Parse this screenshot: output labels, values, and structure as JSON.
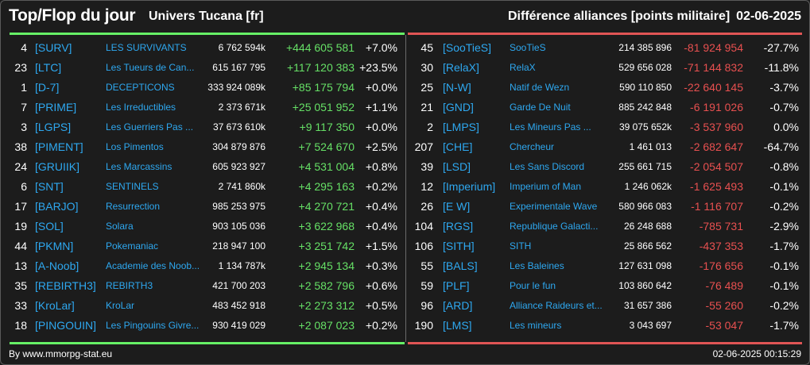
{
  "header": {
    "title": "Top/Flop du jour",
    "universe": "Univers Tucana [fr]",
    "metric": "Différence alliances [points militaire]",
    "date": "02-06-2025"
  },
  "colors": {
    "up": "#66e066",
    "down": "#e85050",
    "tag": "#2ea8f0",
    "top_bar": "#66f066",
    "flop_bar": "#e05555"
  },
  "top": [
    {
      "rank": "4",
      "tag": "[SURV]",
      "name": "LES SURVIVANTS",
      "points": "6 762 594k",
      "diff": "+444 605 581",
      "pct": "+7.0%"
    },
    {
      "rank": "23",
      "tag": "[LTC]",
      "name": "Les Tueurs de Can...",
      "points": "615 167 795",
      "diff": "+117 120 383",
      "pct": "+23.5%"
    },
    {
      "rank": "1",
      "tag": "[D-7]",
      "name": "DECEPTICONS",
      "points": "333 924 089k",
      "diff": "+85 175 794",
      "pct": "+0.0%"
    },
    {
      "rank": "7",
      "tag": "[PRIME]",
      "name": "Les Irreductibles",
      "points": "2 373 671k",
      "diff": "+25 051 952",
      "pct": "+1.1%"
    },
    {
      "rank": "3",
      "tag": "[LGPS]",
      "name": "Les Guerriers Pas ...",
      "points": "37 673 610k",
      "diff": "+9 117 350",
      "pct": "+0.0%"
    },
    {
      "rank": "38",
      "tag": "[PIMENT]",
      "name": "Los Pimentos",
      "points": "304 879 876",
      "diff": "+7 524 670",
      "pct": "+2.5%"
    },
    {
      "rank": "24",
      "tag": "[GRUIIK]",
      "name": "Les Marcassins",
      "points": "605 923 927",
      "diff": "+4 531 004",
      "pct": "+0.8%"
    },
    {
      "rank": "6",
      "tag": "[SNT]",
      "name": "SENTINELS",
      "points": "2 741 860k",
      "diff": "+4 295 163",
      "pct": "+0.2%"
    },
    {
      "rank": "17",
      "tag": "[BARJO]",
      "name": "Resurrection",
      "points": "985 253 975",
      "diff": "+4 270 721",
      "pct": "+0.4%"
    },
    {
      "rank": "19",
      "tag": "[SOL]",
      "name": "Solara",
      "points": "903 105 036",
      "diff": "+3 622 968",
      "pct": "+0.4%"
    },
    {
      "rank": "44",
      "tag": "[PKMN]",
      "name": "Pokemaniac",
      "points": "218 947 100",
      "diff": "+3 251 742",
      "pct": "+1.5%"
    },
    {
      "rank": "13",
      "tag": "[A-Noob]",
      "name": "Academie des Noob...",
      "points": "1 134 787k",
      "diff": "+2 945 134",
      "pct": "+0.3%"
    },
    {
      "rank": "35",
      "tag": "[REBIRTH3]",
      "name": "REBIRTH3",
      "points": "421 700 203",
      "diff": "+2 582 796",
      "pct": "+0.6%"
    },
    {
      "rank": "33",
      "tag": "[KroLar]",
      "name": "KroLar",
      "points": "483 452 918",
      "diff": "+2 273 312",
      "pct": "+0.5%"
    },
    {
      "rank": "18",
      "tag": "[PINGOUIN]",
      "name": "Les Pingouins Givre...",
      "points": "930 419 029",
      "diff": "+2 087 023",
      "pct": "+0.2%"
    }
  ],
  "flop": [
    {
      "rank": "45",
      "tag": "[SooTieS]",
      "name": "SooTieS",
      "points": "214 385 896",
      "diff": "-81 924 954",
      "pct": "-27.7%"
    },
    {
      "rank": "30",
      "tag": "[RelaX]",
      "name": "RelaX",
      "points": "529 656 028",
      "diff": "-71 144 832",
      "pct": "-11.8%"
    },
    {
      "rank": "25",
      "tag": "[N-W]",
      "name": "Natif de Wezn",
      "points": "590 110 850",
      "diff": "-22 640 145",
      "pct": "-3.7%"
    },
    {
      "rank": "21",
      "tag": "[GND]",
      "name": "Garde De Nuit",
      "points": "885 242 848",
      "diff": "-6 191 026",
      "pct": "-0.7%"
    },
    {
      "rank": "2",
      "tag": "[LMPS]",
      "name": "Les Mineurs Pas ...",
      "points": "39 075 652k",
      "diff": "-3 537 960",
      "pct": "0.0%"
    },
    {
      "rank": "207",
      "tag": "[CHE]",
      "name": "Chercheur",
      "points": "1 461 013",
      "diff": "-2 682 647",
      "pct": "-64.7%"
    },
    {
      "rank": "39",
      "tag": "[LSD]",
      "name": "Les Sans Discord",
      "points": "255 661 715",
      "diff": "-2 054 507",
      "pct": "-0.8%"
    },
    {
      "rank": "12",
      "tag": "[Imperium]",
      "name": "Imperium of Man",
      "points": "1 246 062k",
      "diff": "-1 625 493",
      "pct": "-0.1%"
    },
    {
      "rank": "26",
      "tag": "[E W]",
      "name": "Experimentale Wave",
      "points": "580 966 083",
      "diff": "-1 116 707",
      "pct": "-0.2%"
    },
    {
      "rank": "104",
      "tag": "[RGS]",
      "name": "Republique Galacti...",
      "points": "26 248 688",
      "diff": "-785 731",
      "pct": "-2.9%"
    },
    {
      "rank": "106",
      "tag": "[SITH]",
      "name": "SITH",
      "points": "25 866 562",
      "diff": "-437 353",
      "pct": "-1.7%"
    },
    {
      "rank": "55",
      "tag": "[BALS]",
      "name": "Les Baleines",
      "points": "127 631 098",
      "diff": "-176 656",
      "pct": "-0.1%"
    },
    {
      "rank": "59",
      "tag": "[PLF]",
      "name": "Pour le fun",
      "points": "103 860 642",
      "diff": "-76 489",
      "pct": "-0.1%"
    },
    {
      "rank": "96",
      "tag": "[ARD]",
      "name": "Alliance Raideurs et...",
      "points": "31 657 386",
      "diff": "-55 260",
      "pct": "-0.2%"
    },
    {
      "rank": "190",
      "tag": "[LMS]",
      "name": "Les mineurs",
      "points": "3 043 697",
      "diff": "-53 047",
      "pct": "-1.7%"
    }
  ],
  "footer": {
    "source": "By www.mmorpg-stat.eu",
    "timestamp": "02-06-2025 00:15:29"
  }
}
